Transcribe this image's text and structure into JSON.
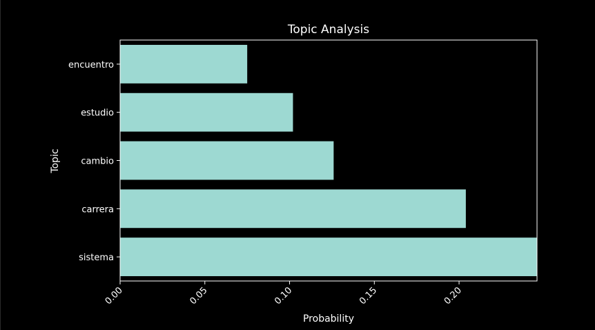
{
  "chart_data": {
    "type": "bar",
    "orientation": "horizontal",
    "title": "Topic Analysis",
    "xlabel": "Probability",
    "ylabel": "Topic",
    "categories": [
      "encuentro",
      "estudio",
      "cambio",
      "carrera",
      "sistema"
    ],
    "values": [
      0.075,
      0.102,
      0.126,
      0.204,
      0.246
    ],
    "xlim": [
      0,
      0.246
    ],
    "xticks": [
      0.0,
      0.05,
      0.1,
      0.15,
      0.2
    ],
    "xtick_labels": [
      "0.00",
      "0.05",
      "0.10",
      "0.15",
      "0.20"
    ],
    "grid": false,
    "legend": "none"
  },
  "colors": {
    "background": "#000000",
    "bar": "#9dd9d2",
    "axis": "#ffffff",
    "text": "#ffffff"
  }
}
